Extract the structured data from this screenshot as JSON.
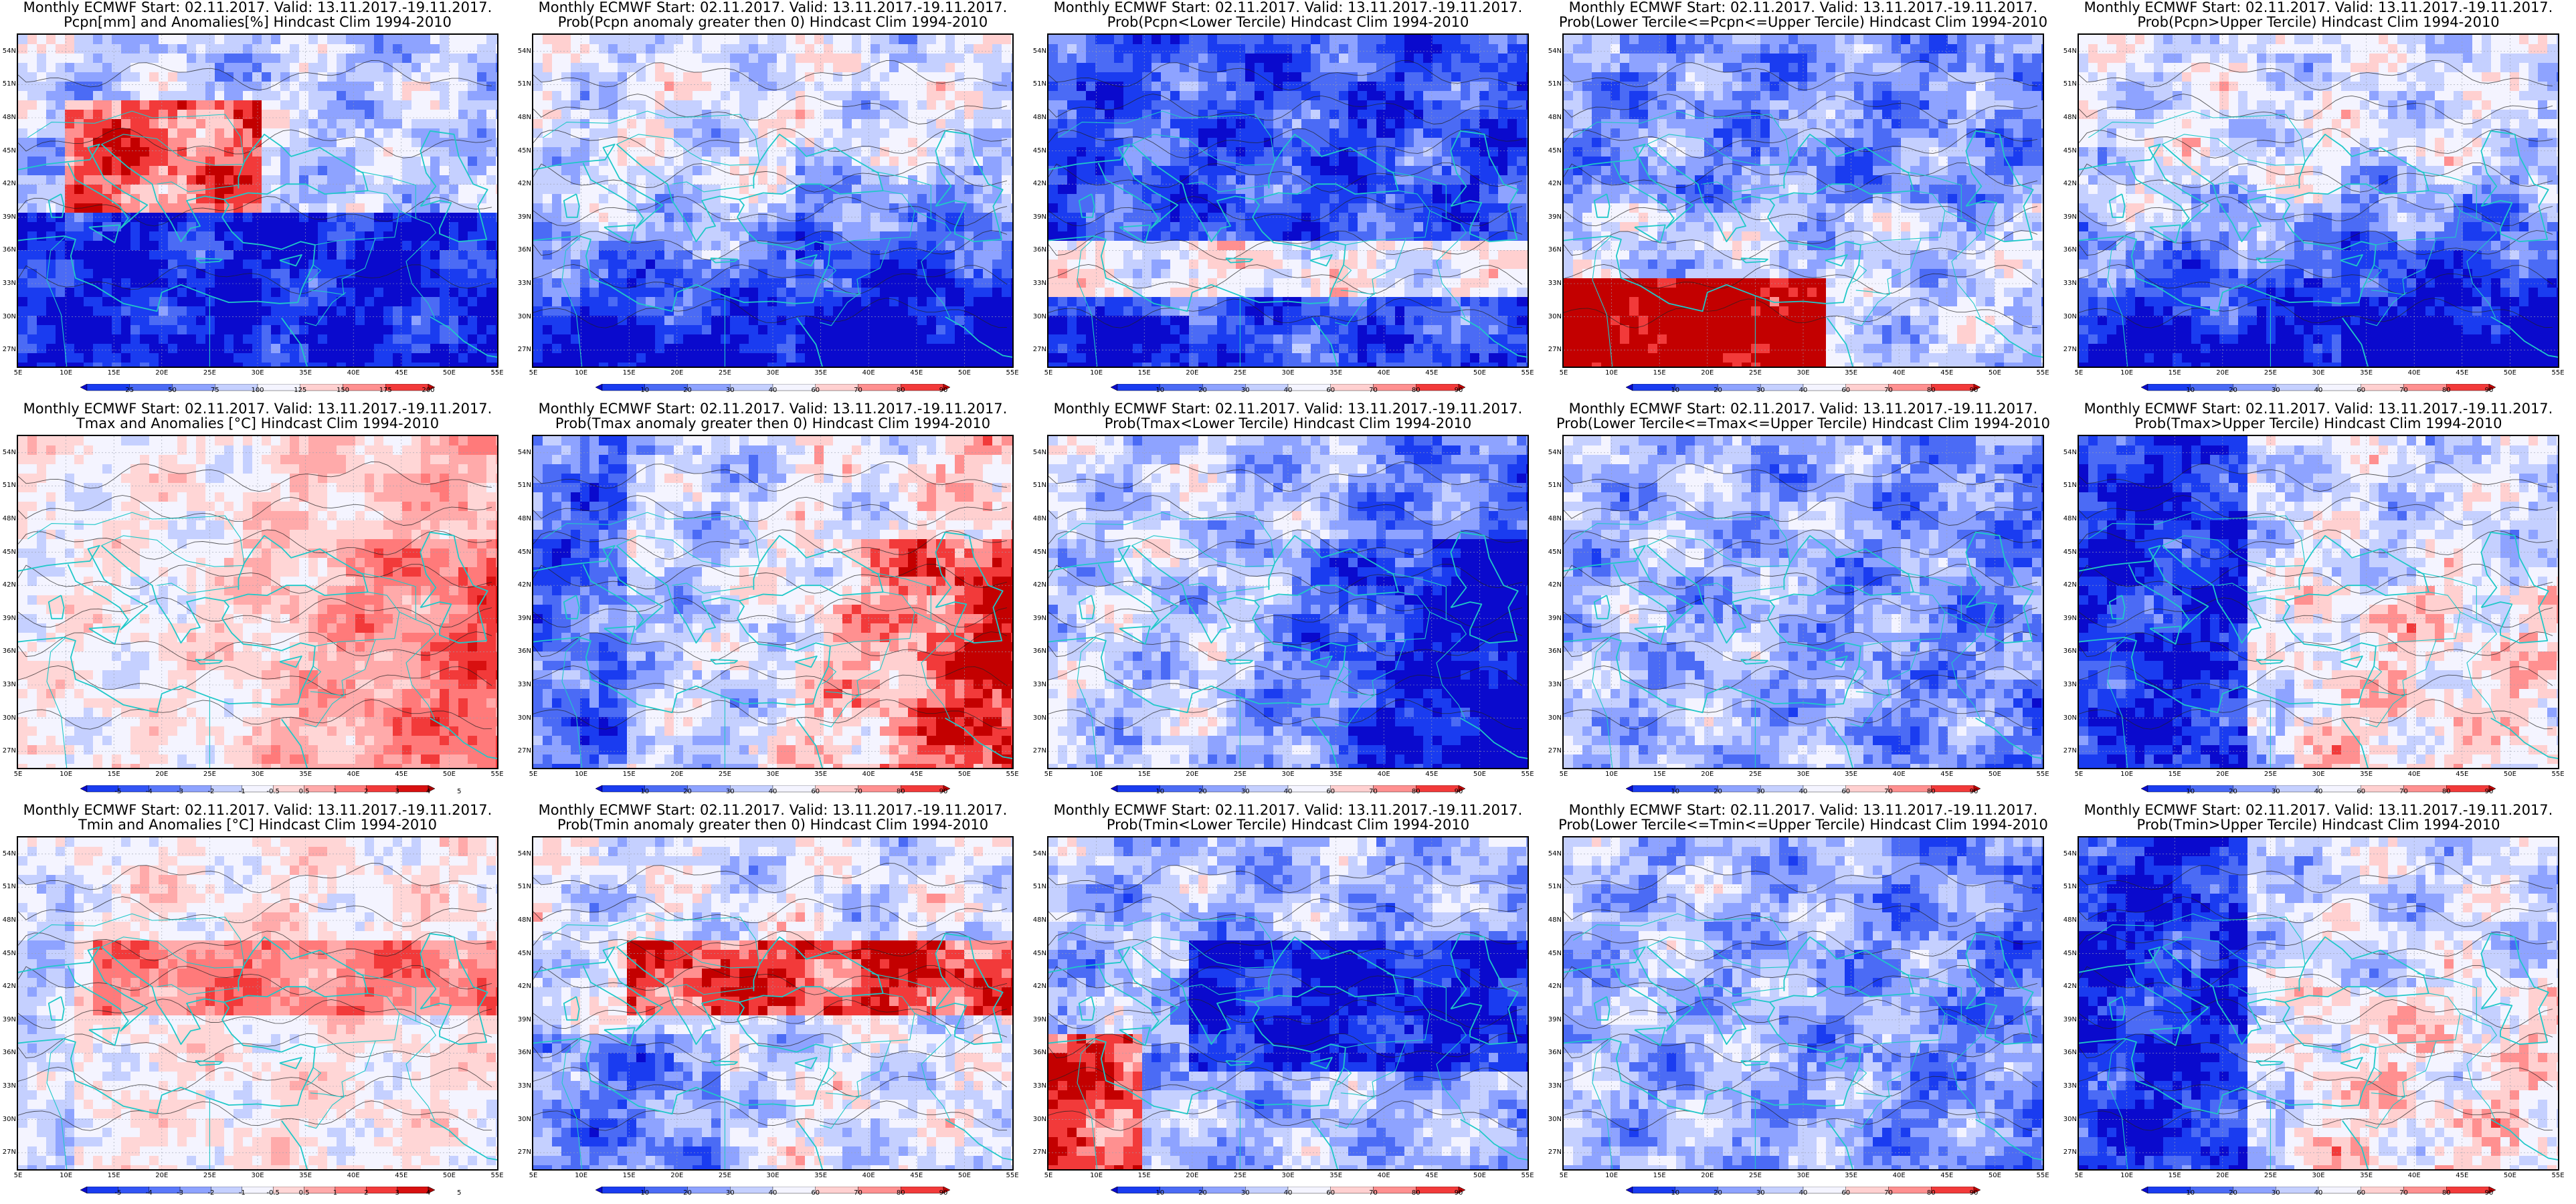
{
  "panels": [
    {
      "title1": "Monthly ECMWF Start: 02.11.2017. Valid: 13.11.2017.-19.11.2017.",
      "title2": "Pcpn[mm] and Anomalies[%] Hindcast Clim 1994-2010",
      "scale": "pcpn_anom",
      "pattern": "pcpn_anom"
    },
    {
      "title1": "Monthly ECMWF Start: 02.11.2017. Valid: 13.11.2017.-19.11.2017.",
      "title2": "Prob(Pcpn anomaly greater then 0) Hindcast Clim 1994-2010",
      "scale": "prob",
      "pattern": "blue_south"
    },
    {
      "title1": "Monthly ECMWF Start: 02.11.2017. Valid: 13.11.2017.-19.11.2017.",
      "title2": "Prob(Pcpn<Lower Tercile) Hindcast Clim 1994-2010",
      "scale": "prob",
      "pattern": "blue_north"
    },
    {
      "title1": "Monthly ECMWF Start: 02.11.2017. Valid: 13.11.2017.-19.11.2017.",
      "title2": "Prob(Lower Tercile<=Pcpn<=Upper Tercile) Hindcast Clim 1994-2010",
      "scale": "prob",
      "pattern": "red_south"
    },
    {
      "title1": "Monthly ECMWF Start: 02.11.2017. Valid: 13.11.2017.-19.11.2017.",
      "title2": "Prob(Pcpn>Upper Tercile) Hindcast Clim 1994-2010",
      "scale": "prob",
      "pattern": "blue_south"
    },
    {
      "title1": "Monthly ECMWF Start: 02.11.2017. Valid: 13.11.2017.-19.11.2017.",
      "title2": "Tmax and Anomalies [°C] Hindcast Clim 1994-2010",
      "scale": "temp_anom",
      "pattern": "red_east_light"
    },
    {
      "title1": "Monthly ECMWF Start: 02.11.2017. Valid: 13.11.2017.-19.11.2017.",
      "title2": "Prob(Tmax anomaly greater then 0) Hindcast Clim 1994-2010",
      "scale": "prob",
      "pattern": "red_east"
    },
    {
      "title1": "Monthly ECMWF Start: 02.11.2017. Valid: 13.11.2017.-19.11.2017.",
      "title2": "Prob(Tmax<Lower Tercile) Hindcast Clim 1994-2010",
      "scale": "prob",
      "pattern": "blue_east"
    },
    {
      "title1": "Monthly ECMWF Start: 02.11.2017. Valid: 13.11.2017.-19.11.2017.",
      "title2": "Prob(Lower Tercile<=Tmax<=Upper Tercile) Hindcast Clim 1994-2010",
      "scale": "prob",
      "pattern": "mixed_blue"
    },
    {
      "title1": "Monthly ECMWF Start: 02.11.2017. Valid: 13.11.2017.-19.11.2017.",
      "title2": "Prob(Tmax>Upper Tercile) Hindcast Clim 1994-2010",
      "scale": "prob",
      "pattern": "blue_west"
    },
    {
      "title1": "Monthly ECMWF Start: 02.11.2017. Valid: 13.11.2017.-19.11.2017.",
      "title2": "Tmin and Anomalies [°C] Hindcast Clim 1994-2010",
      "scale": "temp_anom",
      "pattern": "red_band_light"
    },
    {
      "title1": "Monthly ECMWF Start: 02.11.2017. Valid: 13.11.2017.-19.11.2017.",
      "title2": "Prob(Tmin anomaly greater then 0) Hindcast Clim 1994-2010",
      "scale": "prob",
      "pattern": "red_band"
    },
    {
      "title1": "Monthly ECMWF Start: 02.11.2017. Valid: 13.11.2017.-19.11.2017.",
      "title2": "Prob(Tmin<Lower Tercile) Hindcast Clim 1994-2010",
      "scale": "prob",
      "pattern": "blue_band"
    },
    {
      "title1": "Monthly ECMWF Start: 02.11.2017. Valid: 13.11.2017.-19.11.2017.",
      "title2": "Prob(Lower Tercile<=Tmin<=Upper Tercile) Hindcast Clim 1994-2010",
      "scale": "prob",
      "pattern": "mixed_blue"
    },
    {
      "title1": "Monthly ECMWF Start: 02.11.2017. Valid: 13.11.2017.-19.11.2017.",
      "title2": "Prob(Tmin>Upper Tercile) Hindcast Clim 1994-2010",
      "scale": "prob",
      "pattern": "blue_west"
    }
  ],
  "axes": {
    "lat_labels": [
      "54N",
      "51N",
      "48N",
      "45N",
      "42N",
      "39N",
      "36N",
      "33N",
      "30N",
      "27N"
    ],
    "lon_labels": [
      "5E",
      "10E",
      "15E",
      "20E",
      "25E",
      "30E",
      "35E",
      "40E",
      "45E",
      "50E",
      "55E"
    ]
  },
  "scales": {
    "prob": {
      "labels": [
        "10",
        "20",
        "30",
        "40",
        "60",
        "70",
        "80",
        "90"
      ],
      "colors": [
        "#0a0acd",
        "#1a3cf0",
        "#4b6bf5",
        "#8ea3ff",
        "#c5d0ff",
        "#f4f4ff",
        "#ffd0d0",
        "#ff9090",
        "#f23a3a",
        "#c30000"
      ]
    },
    "pcpn_anom": {
      "labels": [
        "25",
        "50",
        "75",
        "100",
        "125",
        "150",
        "175",
        "200"
      ],
      "colors": [
        "#0a0acd",
        "#1a3cf0",
        "#4b6bf5",
        "#8ea3ff",
        "#c5d0ff",
        "#f4f4ff",
        "#ffd0d0",
        "#ff9090",
        "#f23a3a",
        "#c30000"
      ]
    },
    "temp_anom": {
      "labels": [
        "-5",
        "-4",
        "-3",
        "-2",
        "-1",
        "-0.5",
        "0.5",
        "1",
        "2",
        "3",
        "4",
        "5"
      ],
      "colors": [
        "#0a0acd",
        "#1a3cf0",
        "#3355f5",
        "#5a78fa",
        "#8ea3ff",
        "#c5d0ff",
        "#f4f4ff",
        "#ffd6d6",
        "#ffaaaa",
        "#ff7a7a",
        "#f23a3a",
        "#d81010",
        "#a80000"
      ]
    }
  },
  "overlay_colors": {
    "borders": "#20c8c8",
    "contours": "#222222",
    "grid": "#9aa0b0"
  }
}
